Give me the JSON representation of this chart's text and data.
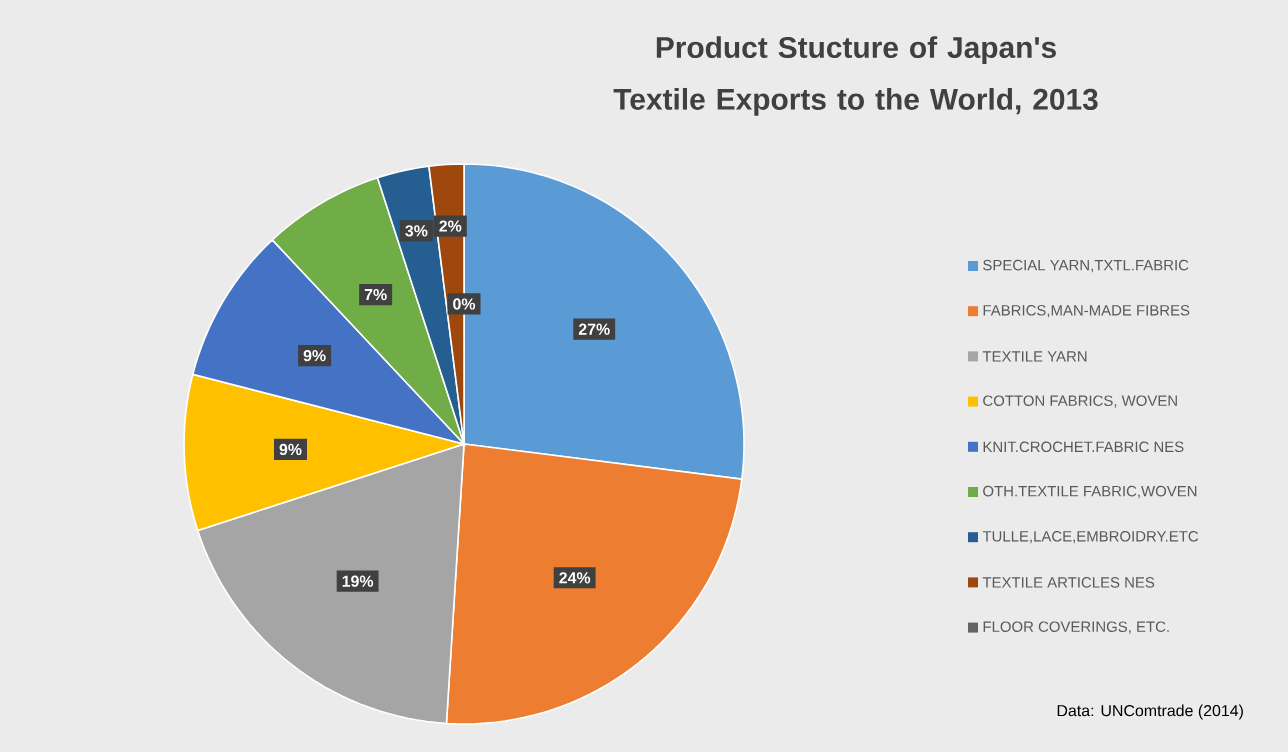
{
  "chart_data": {
    "type": "pie",
    "title": "Product Stucture of Japan's Textile Exports to the World, 2013",
    "categories": [
      "SPECIAL YARN,TXTL.FABRIC",
      "FABRICS,MAN-MADE FIBRES",
      "TEXTILE YARN",
      "COTTON FABRICS, WOVEN",
      "KNIT.CROCHET.FABRIC NES",
      "OTH.TEXTILE FABRIC,WOVEN",
      "TULLE,LACE,EMBROIDRY.ETC",
      "TEXTILE ARTICLES NES",
      "FLOOR COVERINGS, ETC."
    ],
    "values": [
      27,
      24,
      19,
      9,
      9,
      7,
      3,
      2,
      0
    ],
    "value_labels": [
      "27%",
      "24%",
      "19%",
      "9%",
      "9%",
      "7%",
      "3%",
      "2%",
      "0%"
    ],
    "colors": [
      "#5b9bd5",
      "#ed7d31",
      "#a5a5a5",
      "#ffc000",
      "#4472c4",
      "#70ad47",
      "#255e91",
      "#9e480e",
      "#636363"
    ],
    "legend": "right",
    "annotations": [
      "Data: UNComtrade (2014)"
    ]
  }
}
